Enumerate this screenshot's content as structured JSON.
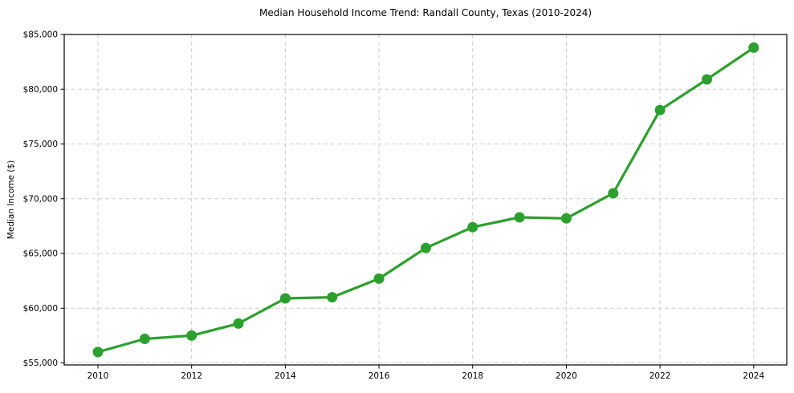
{
  "chart_data": {
    "type": "line",
    "title": "Median Household Income Trend: Randall County, Texas (2010-2024)",
    "ylabel": "Median Income ($)",
    "xlabel": "",
    "x": [
      2010,
      2011,
      2012,
      2013,
      2014,
      2015,
      2016,
      2017,
      2018,
      2019,
      2020,
      2021,
      2022,
      2023,
      2024
    ],
    "values": [
      56000,
      57200,
      57500,
      58600,
      60900,
      61000,
      62700,
      65500,
      67400,
      68300,
      68200,
      70500,
      78100,
      80900,
      83800
    ],
    "x_ticks": [
      2010,
      2012,
      2014,
      2016,
      2018,
      2020,
      2022,
      2024
    ],
    "x_tick_labels": [
      "2010",
      "2012",
      "2014",
      "2016",
      "2018",
      "2020",
      "2022",
      "2024"
    ],
    "y_ticks": [
      55000,
      60000,
      65000,
      70000,
      75000,
      80000,
      85000
    ],
    "y_tick_labels": [
      "$55,000",
      "$60,000",
      "$65,000",
      "$70,000",
      "$75,000",
      "$80,000",
      "$85,000"
    ],
    "ylim": [
      55000,
      85000
    ],
    "xlim": [
      2009.3,
      2024.7
    ],
    "grid": true,
    "grid_style": "dashed",
    "grid_color": "#cdcdcd",
    "line_color": "#2ca02c",
    "marker": "circle",
    "frame_color": "#000000",
    "background_color": "#ffffff",
    "legend": "none"
  }
}
